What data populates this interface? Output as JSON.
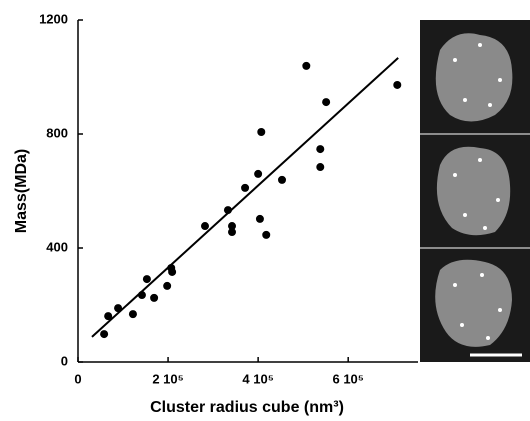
{
  "chart_data": {
    "type": "scatter",
    "x_label": "Cluster radius cube (nm³)",
    "y_label": "Mass(MDa)",
    "x": [
      58000,
      67000,
      89000,
      122000,
      142000,
      153000,
      169000,
      198000,
      207000,
      209000,
      282000,
      333000,
      342000,
      342000,
      371000,
      400000,
      407000,
      404000,
      418000,
      453000,
      507000,
      538000,
      538000,
      551000,
      709000
    ],
    "values": [
      98,
      161,
      189,
      168,
      235,
      291,
      225,
      267,
      330,
      316,
      477,
      533,
      477,
      456,
      611,
      660,
      807,
      502,
      446,
      639,
      1039,
      747,
      684,
      912,
      972
    ],
    "color": "#000000",
    "fit_line": {
      "x": [
        31000,
        711000
      ],
      "y": [
        88,
        1067
      ]
    },
    "xlim": [
      0,
      755000
    ],
    "ylim": [
      0,
      1200
    ],
    "xticks": [
      0,
      {
        "value": 200000,
        "label": "2 10⁵"
      },
      {
        "value": 400000,
        "label": "4 10⁵"
      },
      {
        "value": 600000,
        "label": "6 10⁵"
      }
    ],
    "yticks": [
      0,
      400,
      800,
      1200
    ]
  }
}
